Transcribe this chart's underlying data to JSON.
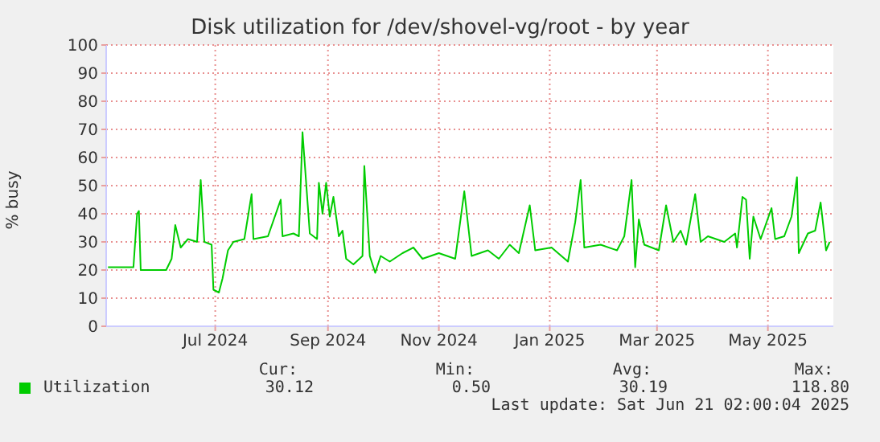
{
  "chart_data": {
    "type": "line",
    "title": "Disk utilization for /dev/shovel-vg/root - by year",
    "ylabel": "% busy",
    "x": [
      "2024-05-03",
      "2024-05-17",
      "2024-05-19",
      "2024-05-20",
      "2024-05-21",
      "2024-06-04",
      "2024-06-07",
      "2024-06-09",
      "2024-06-12",
      "2024-06-16",
      "2024-06-21",
      "2024-06-23",
      "2024-06-25",
      "2024-06-29",
      "2024-06-30",
      "2024-07-03",
      "2024-07-05",
      "2024-07-08",
      "2024-07-11",
      "2024-07-17",
      "2024-07-21",
      "2024-07-22",
      "2024-07-30",
      "2024-08-06",
      "2024-08-07",
      "2024-08-13",
      "2024-08-16",
      "2024-08-18",
      "2024-08-22",
      "2024-08-26",
      "2024-08-27",
      "2024-08-29",
      "2024-08-31",
      "2024-09-02",
      "2024-09-04",
      "2024-09-07",
      "2024-09-09",
      "2024-09-11",
      "2024-09-15",
      "2024-09-20",
      "2024-09-21",
      "2024-09-24",
      "2024-09-27",
      "2024-09-30",
      "2024-10-05",
      "2024-10-12",
      "2024-10-18",
      "2024-10-23",
      "2024-11-01",
      "2024-11-10",
      "2024-11-15",
      "2024-11-19",
      "2024-11-28",
      "2024-12-04",
      "2024-12-10",
      "2024-12-15",
      "2024-12-21",
      "2024-12-24",
      "2025-01-02",
      "2025-01-11",
      "2025-01-15",
      "2025-01-18",
      "2025-01-20",
      "2025-01-29",
      "2025-02-07",
      "2025-02-11",
      "2025-02-15",
      "2025-02-17",
      "2025-02-19",
      "2025-02-22",
      "2025-03-02",
      "2025-03-06",
      "2025-03-10",
      "2025-03-14",
      "2025-03-17",
      "2025-03-22",
      "2025-03-25",
      "2025-03-29",
      "2025-04-07",
      "2025-04-13",
      "2025-04-14",
      "2025-04-17",
      "2025-04-19",
      "2025-04-21",
      "2025-04-23",
      "2025-04-27",
      "2025-05-03",
      "2025-05-05",
      "2025-05-10",
      "2025-05-14",
      "2025-05-17",
      "2025-05-18",
      "2025-05-23",
      "2025-05-27",
      "2025-05-30",
      "2025-06-02",
      "2025-06-04"
    ],
    "series": [
      {
        "name": "Utilization",
        "color": "#00cc00",
        "values": [
          21,
          21,
          40,
          41,
          20,
          20,
          24,
          36,
          28,
          31,
          30,
          52,
          30,
          29,
          13,
          12,
          17,
          27,
          30,
          31,
          47,
          31,
          32,
          45,
          32,
          33,
          32,
          69,
          33,
          31,
          51,
          40,
          51,
          39,
          46,
          32,
          34,
          24,
          22,
          25,
          57,
          25,
          19,
          25,
          23,
          26,
          28,
          24,
          26,
          24,
          48,
          25,
          27,
          24,
          29,
          26,
          43,
          27,
          28,
          23,
          37,
          52,
          28,
          29,
          27,
          32,
          52,
          21,
          38,
          29,
          27,
          43,
          30,
          34,
          29,
          47,
          30,
          32,
          30,
          33,
          28,
          46,
          45,
          24,
          39,
          31,
          42,
          31,
          32,
          39,
          53,
          26,
          33,
          34,
          44,
          27,
          30
        ]
      }
    ],
    "xlim": [
      "2024-05-02",
      "2025-06-06"
    ],
    "xticks": [
      {
        "value": "2024-07-01",
        "label": "Jul 2024"
      },
      {
        "value": "2024-09-01",
        "label": "Sep 2024"
      },
      {
        "value": "2024-11-01",
        "label": "Nov 2024"
      },
      {
        "value": "2025-01-01",
        "label": "Jan 2025"
      },
      {
        "value": "2025-03-01",
        "label": "Mar 2025"
      },
      {
        "value": "2025-05-01",
        "label": "May 2025"
      }
    ],
    "ylim": [
      0,
      100
    ],
    "yticks": [
      0,
      10,
      20,
      30,
      40,
      50,
      60,
      70,
      80,
      90,
      100
    ],
    "grid": true,
    "legend": "bottom left",
    "marker": "none",
    "line_style": "solid",
    "annotations": [
      "Cur:",
      "Min:",
      "Avg:",
      "Max:",
      "30.12",
      "0.50",
      "30.19",
      "118.80",
      "Last update: Sat Jun 21 02:00:04 2025"
    ]
  }
}
